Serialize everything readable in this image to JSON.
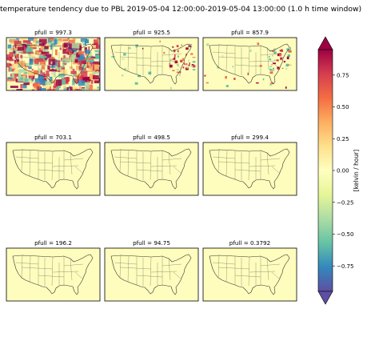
{
  "chart_data": {
    "type": "heatmap",
    "title": "temperature tendency due to PBL 2019-05-04 12:00:00-2019-05-04 13:00:00 (1.0 h time window)",
    "panels": [
      {
        "label": "pfull = 997.3",
        "activity": "high"
      },
      {
        "label": "pfull = 925.5",
        "activity": "medium"
      },
      {
        "label": "pfull = 857.9",
        "activity": "medium"
      },
      {
        "label": "pfull = 703.1",
        "activity": "none"
      },
      {
        "label": "pfull = 498.5",
        "activity": "none"
      },
      {
        "label": "pfull = 299.4",
        "activity": "none"
      },
      {
        "label": "pfull = 196.2",
        "activity": "none"
      },
      {
        "label": "pfull = 94.75",
        "activity": "none"
      },
      {
        "label": "pfull = 0.3792",
        "activity": "none"
      }
    ],
    "colorbar": {
      "label": "[kelvin / hour]",
      "range": [
        -0.95,
        0.95
      ],
      "ticks": [
        0.75,
        0.5,
        0.25,
        0.0,
        -0.25,
        -0.5,
        -0.75
      ],
      "tick_labels": [
        "0.75",
        "0.50",
        "0.25",
        "0.00",
        "−0.25",
        "−0.50",
        "−0.75"
      ],
      "colormap": "Spectral_r",
      "extend": "both"
    }
  }
}
